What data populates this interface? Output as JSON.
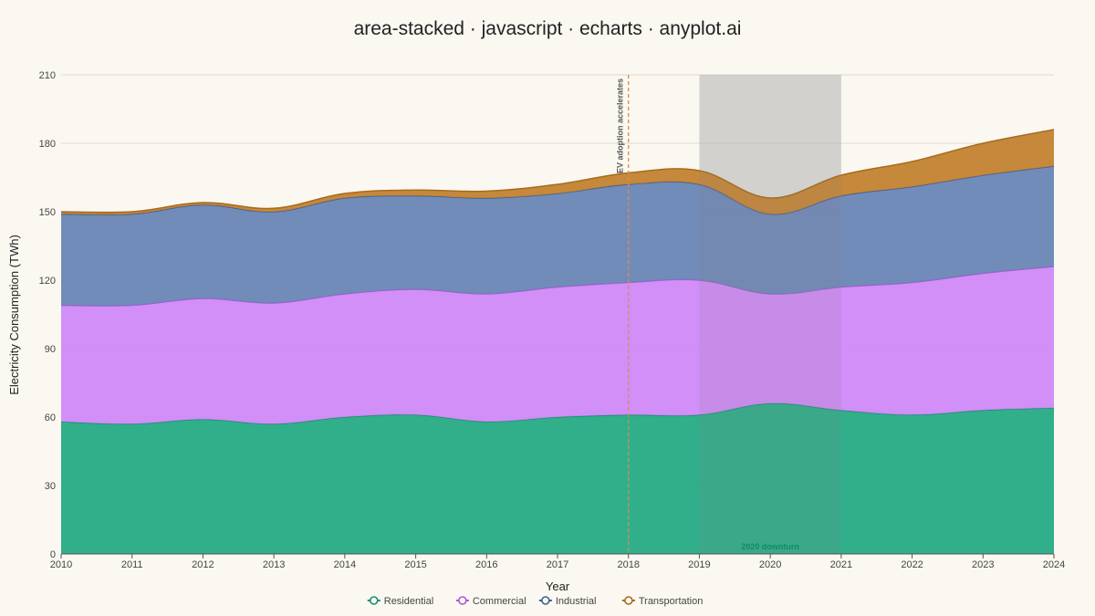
{
  "chart_data": {
    "type": "area",
    "stacked": true,
    "title": "area-stacked · javascript · echarts · anyplot.ai",
    "xlabel": "Year",
    "ylabel": "Electricity Consumption (TWh)",
    "x": [
      "2010",
      "2011",
      "2012",
      "2013",
      "2014",
      "2015",
      "2016",
      "2017",
      "2018",
      "2019",
      "2020",
      "2021",
      "2022",
      "2023",
      "2024"
    ],
    "ylim": [
      0,
      210
    ],
    "yticks": [
      "0",
      "30",
      "60",
      "90",
      "120",
      "150",
      "180",
      "210"
    ],
    "grid": true,
    "legend_position": "bottom",
    "series": [
      {
        "name": "Residential",
        "color": "#1FA882",
        "line_color": "#178F6E",
        "values": [
          58,
          57,
          59,
          57,
          60,
          61,
          58,
          60,
          61,
          61,
          66,
          63,
          61,
          63,
          64
        ]
      },
      {
        "name": "Commercial",
        "color": "#CD85F7",
        "line_color": "#A85BD6",
        "values": [
          51,
          52,
          53,
          53,
          54,
          55,
          56,
          57,
          58,
          59,
          48,
          54,
          58,
          60,
          62
        ]
      },
      {
        "name": "Industrial",
        "color": "#6682B4",
        "line_color": "#3E5F98",
        "values": [
          40,
          40,
          41,
          40,
          42,
          41,
          42,
          41,
          43,
          42,
          35,
          40,
          42,
          43,
          44
        ]
      },
      {
        "name": "Transportation",
        "color": "#C17F2B",
        "line_color": "#A86A1C",
        "values": [
          1,
          1,
          1,
          1.5,
          2,
          2.5,
          3,
          4,
          5,
          6,
          7,
          9,
          11,
          14,
          16
        ]
      }
    ],
    "annotations": [
      {
        "type": "vertical-line",
        "x": "2018",
        "label": "EV adoption accelerates",
        "color": "#D98C4A"
      },
      {
        "type": "band",
        "x_start": "2019",
        "x_end": "2021",
        "label": "2020 downturn",
        "color": "#B8B8B8"
      }
    ]
  }
}
